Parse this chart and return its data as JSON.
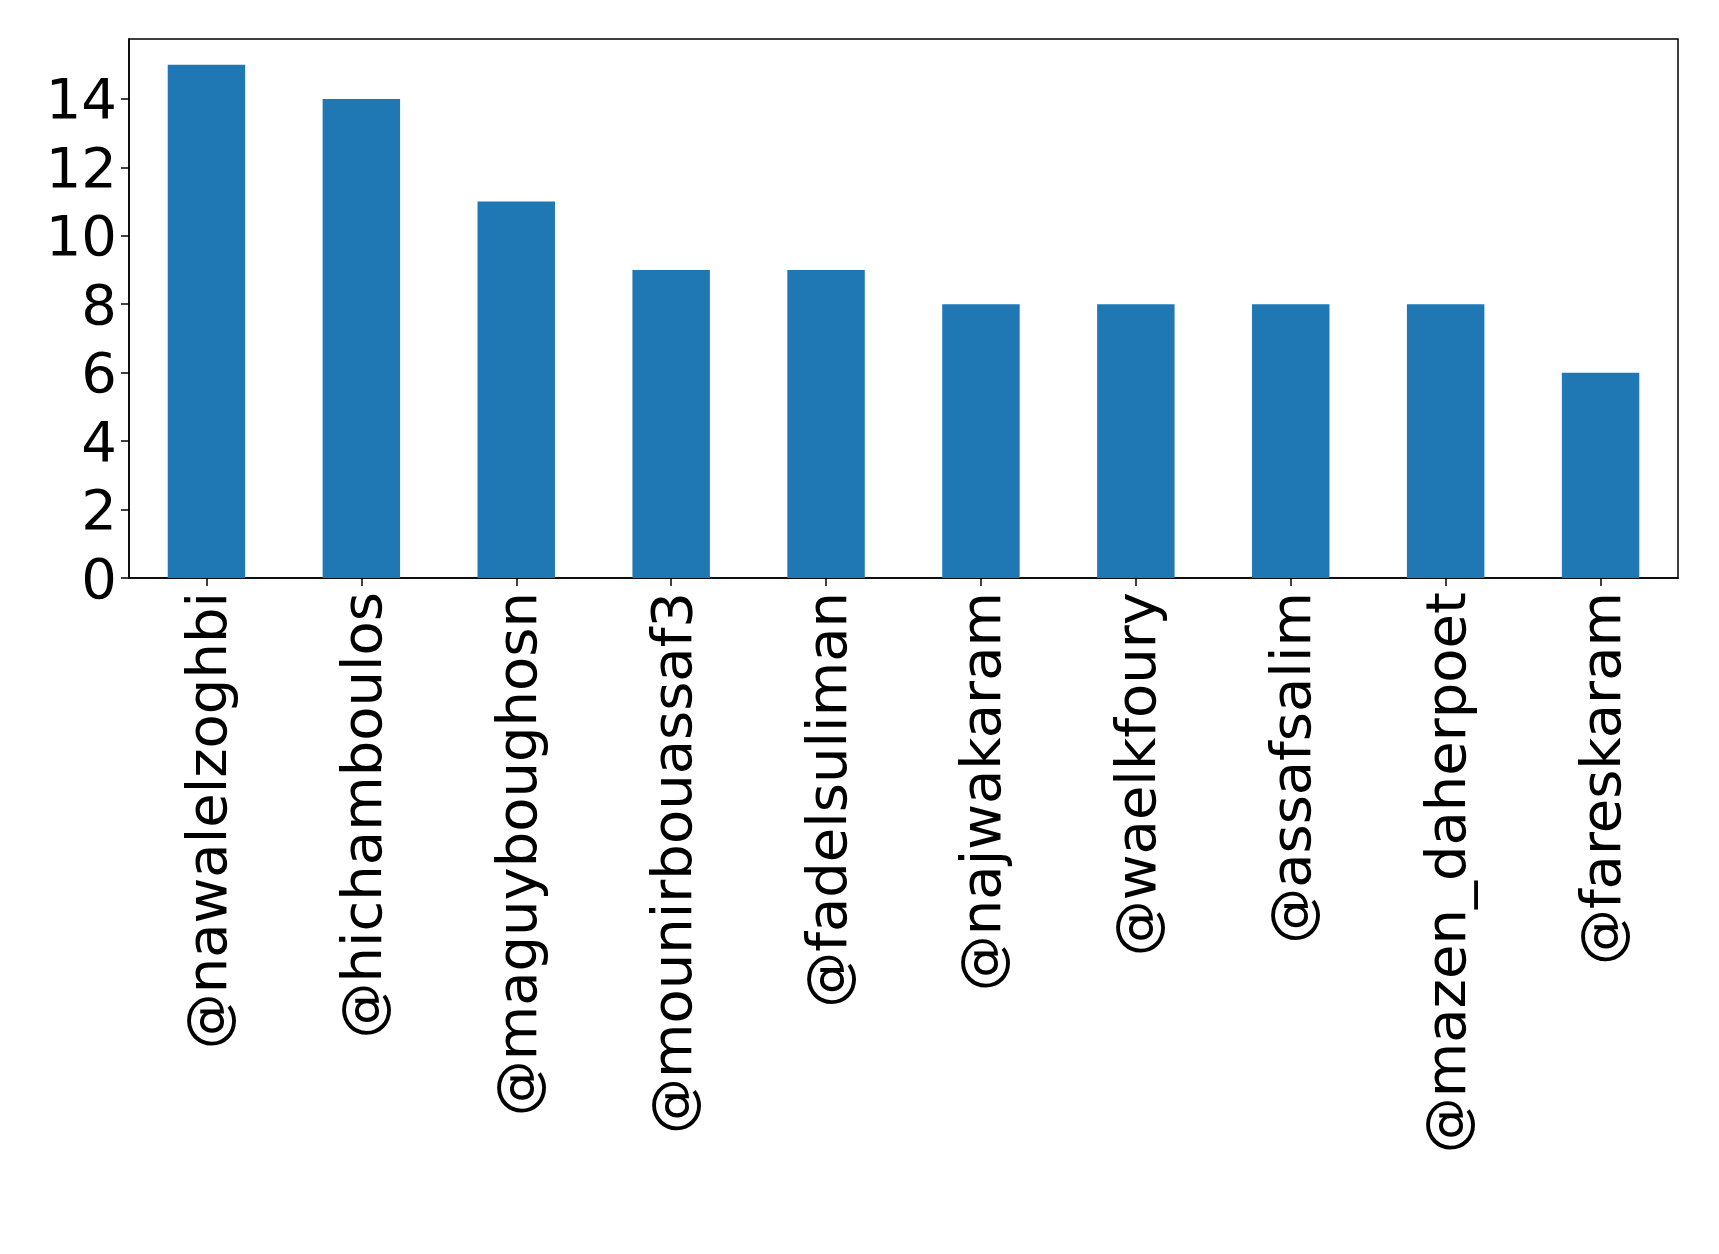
{
  "chart_data": {
    "type": "bar",
    "categories": [
      "@nawalelzoghbi",
      "@hichamboulos",
      "@maguyboughosn",
      "@mounirbouassaf3",
      "@fadelsuliman",
      "@najwakaram",
      "@waelkfoury",
      "@assafsalim",
      "@mazen_daherpoet",
      "@fareskaram"
    ],
    "values": [
      15,
      14,
      11,
      9,
      9,
      8,
      8,
      8,
      8,
      6
    ],
    "color": "#1f77b4",
    "ylim": [
      0,
      15.75
    ],
    "yticks": [
      0,
      2,
      4,
      6,
      8,
      10,
      12,
      14
    ],
    "grid": false
  }
}
